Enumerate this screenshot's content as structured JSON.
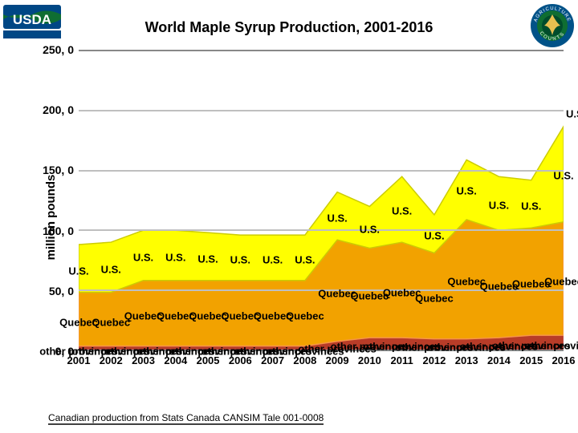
{
  "title": {
    "text": "World Maple Syrup Production, 2001-2016",
    "fontsize": 18,
    "color": "#000000"
  },
  "caption": {
    "text": "Canadian production from Stats Canada CANSIM Tale 001-0008",
    "fontsize": 12,
    "color": "#000000"
  },
  "y_axis": {
    "label": "million pounds",
    "label_fontsize": 15,
    "tick_fontsize": 14,
    "min": 0,
    "max": 250,
    "step": 50,
    "tick_format": "euro_comma"
  },
  "x_axis": {
    "tick_fontsize": 13,
    "categories": [
      "2001",
      "2002",
      "2003",
      "2004",
      "2005",
      "2006",
      "2007",
      "2008",
      "2009",
      "2010",
      "2011",
      "2012",
      "2013",
      "2014",
      "2015",
      "2016"
    ]
  },
  "chart": {
    "type": "stacked_area",
    "background_color": "#ffffff",
    "gridline_color": "#bfbfbf",
    "axis_line_color": "#888888",
    "series": [
      {
        "name": "other provinces",
        "label": "other provinces",
        "fill": "#b83c28",
        "stroke": "#c0504d",
        "label_color": "#000000",
        "values": [
          3,
          3,
          3,
          3,
          3,
          3,
          3,
          3,
          7,
          10,
          10,
          9,
          9,
          10,
          12,
          12
        ]
      },
      {
        "name": "Quebec",
        "label": "Quebec",
        "fill": "#f2a200",
        "stroke": "#f79646",
        "label_color": "#000000",
        "values": [
          45,
          45,
          55,
          55,
          55,
          55,
          55,
          55,
          85,
          75,
          80,
          72,
          100,
          90,
          90,
          95
        ]
      },
      {
        "name": "U.S.",
        "label": "U.S.",
        "fill": "#ffff00",
        "stroke": "#cccc00",
        "label_color": "#000000",
        "values": [
          40,
          42,
          42,
          42,
          40,
          38,
          38,
          38,
          40,
          35,
          55,
          32,
          50,
          45,
          40,
          80
        ]
      }
    ],
    "series_label_fontsize": 13,
    "extra_labels": [
      {
        "text": "U.S.",
        "rel_x": 1.005,
        "y_value": 198,
        "anchor": "left"
      }
    ]
  },
  "logos": {
    "usda": {
      "bar_color": "#004785",
      "text_color": "#ffffff",
      "strap_color": "#004785",
      "strap_text": "United States Department of Agriculture"
    },
    "agriculture_counts": {
      "outer": "#005288",
      "mid": "#0f6e32",
      "inner": "#004c2c",
      "top_text": "AGRICULTURE",
      "bottom_text": "COUNTS"
    }
  }
}
